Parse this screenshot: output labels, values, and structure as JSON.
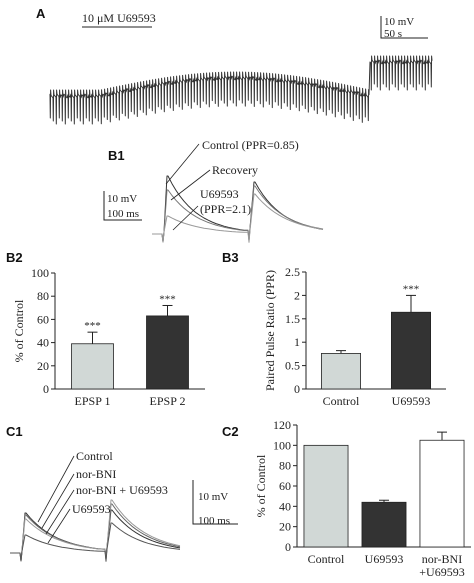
{
  "panels": {
    "A": {
      "label": "A",
      "drug_bar_label": "10 μM U69593",
      "scale": {
        "amplitude": "10 mV",
        "time": "50 s"
      }
    },
    "B1": {
      "label": "B1",
      "annotations": [
        "Control (PPR=0.85)",
        "Recovery",
        "U69593",
        "(PPR=2.1)"
      ],
      "scale": {
        "amplitude": "10 mV",
        "time": "100 ms"
      }
    },
    "B2": {
      "label": "B2"
    },
    "B3": {
      "label": "B3"
    },
    "C1": {
      "label": "C1",
      "annotations": [
        "Control",
        "nor-BNI",
        "nor-BNI + U69593",
        "U69593"
      ],
      "scale": {
        "amplitude": "10 mV",
        "time": "100 ms"
      }
    },
    "C2": {
      "label": "C2"
    }
  },
  "colors": {
    "light_bar": "#d1d8d6",
    "dark_bar": "#333333",
    "white_bar": "#ffffff",
    "trace_dark": "#333333",
    "trace_gray": "#888888"
  },
  "chart_data": [
    {
      "panel": "B2",
      "type": "bar",
      "categories": [
        "EPSP 1",
        "EPSP 2"
      ],
      "values": [
        39,
        63
      ],
      "errors": [
        10,
        9
      ],
      "significance": [
        "***",
        "***"
      ],
      "fills": [
        "#d1d8d6",
        "#333333"
      ],
      "ylabel": "% of Control",
      "ylim": [
        0,
        100
      ],
      "yticks": [
        0,
        20,
        40,
        60,
        80,
        100
      ],
      "grid": false
    },
    {
      "panel": "B3",
      "type": "bar",
      "categories": [
        "Control",
        "U69593"
      ],
      "values": [
        0.76,
        1.64
      ],
      "errors": [
        0.06,
        0.36
      ],
      "significance": [
        "",
        "***"
      ],
      "fills": [
        "#d1d8d6",
        "#333333"
      ],
      "ylabel": "Paired Pulse Ratio (PPR)",
      "ylim": [
        0,
        2.5
      ],
      "yticks": [
        "0",
        "0.5",
        "1",
        "1.5",
        "2",
        "2.5"
      ],
      "grid": false
    },
    {
      "panel": "C2",
      "type": "bar",
      "categories": [
        "Control",
        "U69593",
        "nor-BNI\n+U69593"
      ],
      "values": [
        100,
        44,
        105
      ],
      "errors": [
        0,
        2,
        8
      ],
      "significance": [
        "",
        "",
        ""
      ],
      "fills": [
        "#d1d8d6",
        "#333333",
        "#ffffff"
      ],
      "ylabel": "% of Control",
      "ylim": [
        0,
        120
      ],
      "yticks": [
        0,
        20,
        40,
        60,
        80,
        100,
        120
      ],
      "grid": false
    }
  ]
}
